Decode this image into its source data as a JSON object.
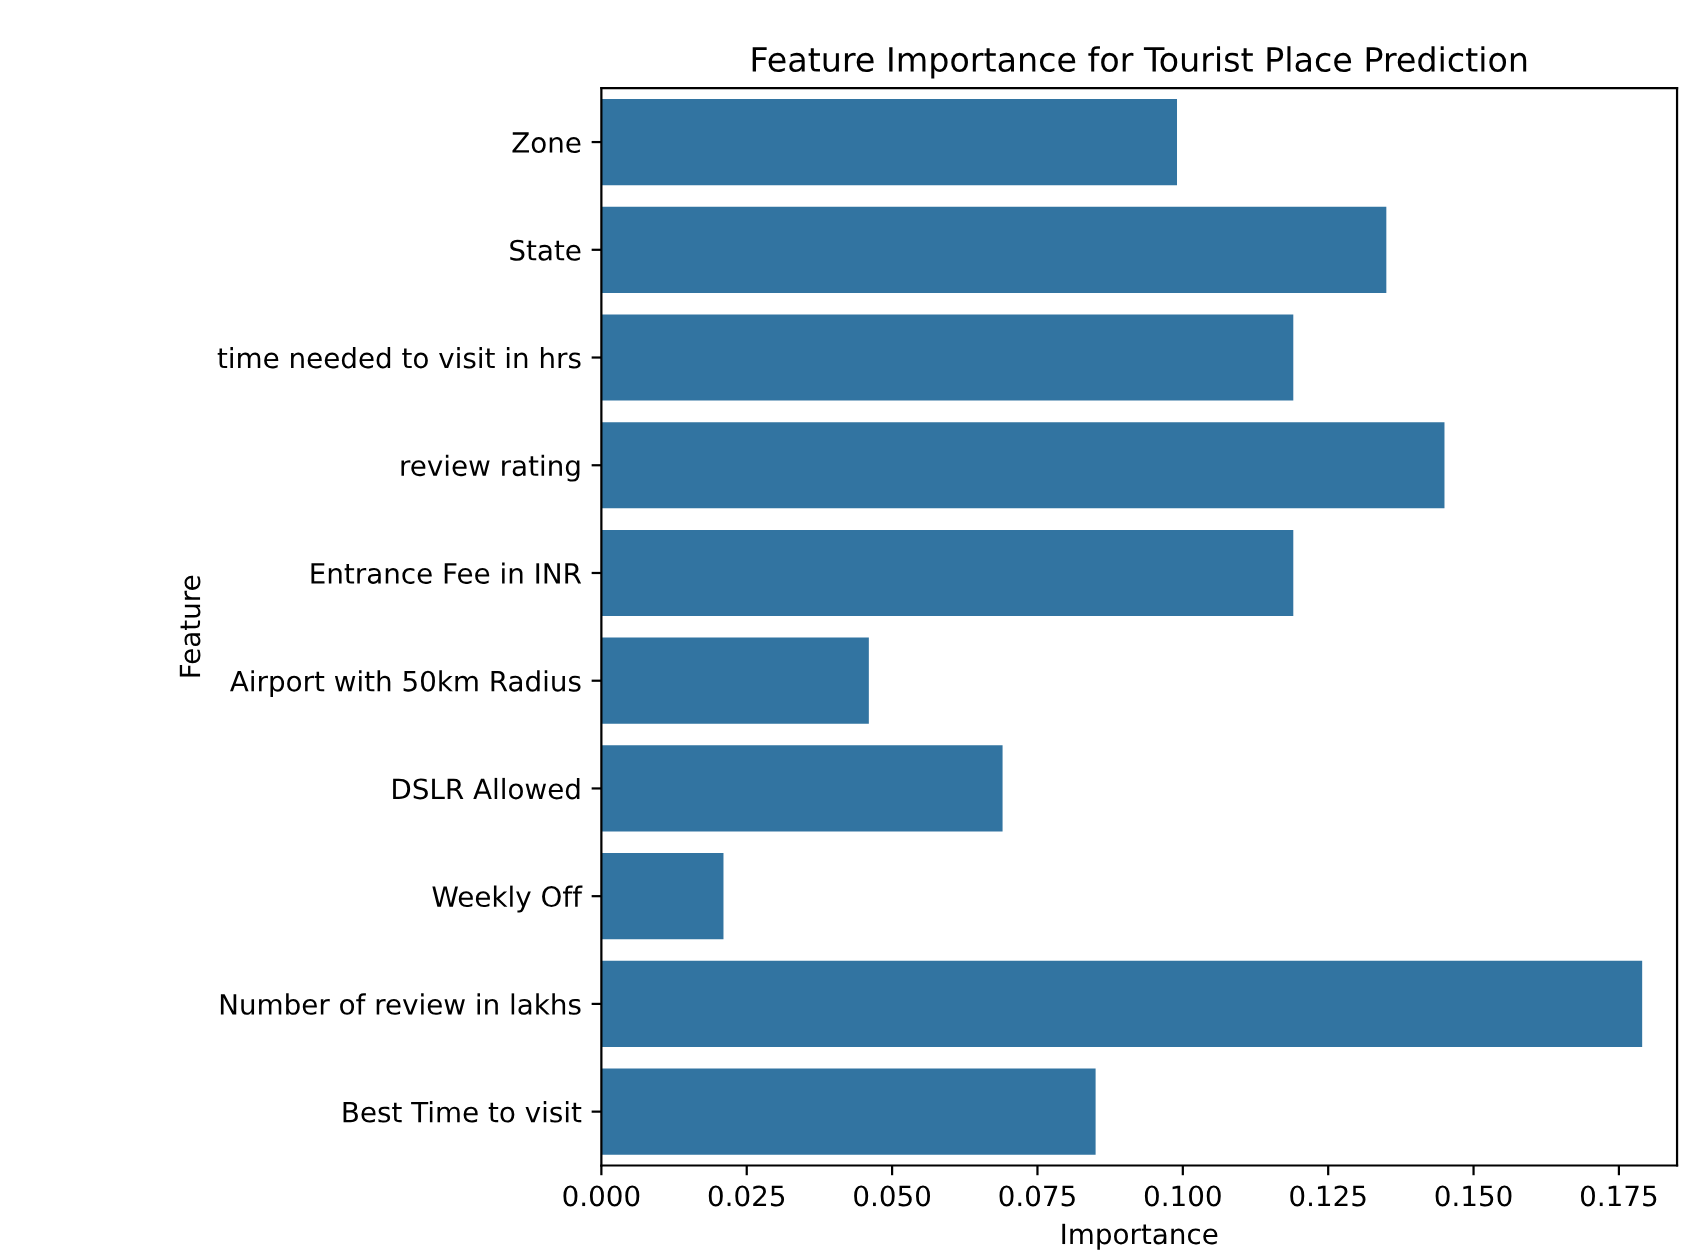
{
  "chart_data": {
    "type": "bar",
    "orientation": "horizontal",
    "title": "Feature Importance for Tourist Place Prediction",
    "xlabel": "Importance",
    "ylabel": "Feature",
    "categories": [
      "Zone",
      "State",
      "time needed to visit in hrs",
      "review rating",
      "Entrance Fee in INR",
      "Airport with 50km Radius",
      "DSLR Allowed",
      "Weekly Off",
      "Number of review in lakhs",
      "Best Time to visit"
    ],
    "values": [
      0.099,
      0.135,
      0.119,
      0.145,
      0.119,
      0.046,
      0.069,
      0.021,
      0.179,
      0.085
    ],
    "color": "#3274a1",
    "xlim": [
      0,
      0.185
    ],
    "xticks": [
      {
        "value": 0,
        "label": "0.000"
      },
      {
        "value": 0.025,
        "label": "0.025"
      },
      {
        "value": 0.05,
        "label": "0.050"
      },
      {
        "value": 0.075,
        "label": "0.075"
      },
      {
        "value": 0.1,
        "label": "0.100"
      },
      {
        "value": 0.125,
        "label": "0.125"
      },
      {
        "value": 0.15,
        "label": "0.150"
      },
      {
        "value": 0.175,
        "label": "0.175"
      }
    ],
    "grid": false,
    "legend": false
  }
}
